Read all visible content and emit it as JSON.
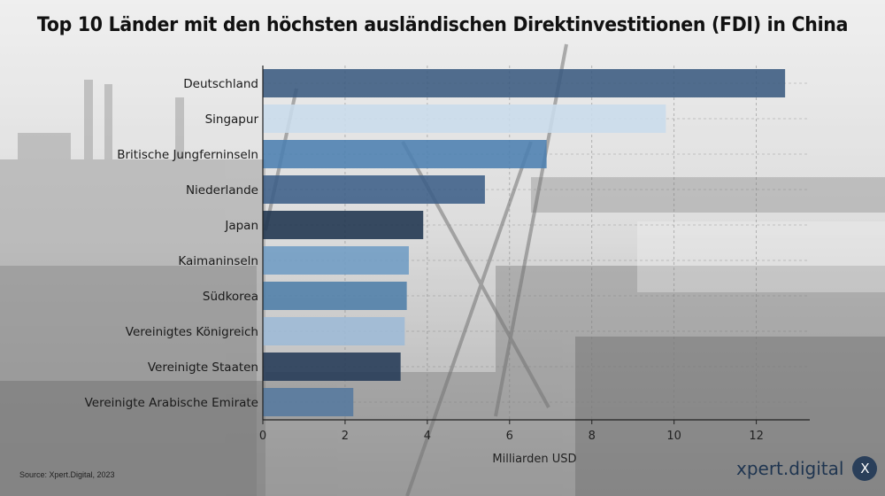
{
  "chart_data": {
    "type": "bar",
    "orientation": "horizontal",
    "title": "Top 10 Länder mit den höchsten ausländischen Direktinvestitionen (FDI) in China",
    "xlabel": "Milliarden USD",
    "ylabel": "",
    "categories": [
      "Deutschland",
      "Singapur",
      "Britische Jungferninseln",
      "Niederlande",
      "Japan",
      "Kaimaninseln",
      "Südkorea",
      "Vereinigtes Königreich",
      "Vereinigte Staaten",
      "Vereinigte Arabische Emirate"
    ],
    "values": [
      12.7,
      9.8,
      6.9,
      5.4,
      3.9,
      3.55,
      3.5,
      3.45,
      3.35,
      2.2
    ],
    "bar_colors": [
      "#3a5a80",
      "#c9dcec",
      "#4c7fb0",
      "#3c5f88",
      "#1f344e",
      "#6f9cc4",
      "#4f7ea8",
      "#9dbad6",
      "#243a56",
      "#55799e"
    ],
    "xlim": [
      0,
      13.3
    ],
    "xticks": [
      0,
      2,
      4,
      6,
      8,
      10,
      12
    ],
    "grid": true
  },
  "footer": {
    "source": "Source: Xpert.Digital, 2023",
    "brand": "xpert.digital",
    "badge": "X"
  }
}
